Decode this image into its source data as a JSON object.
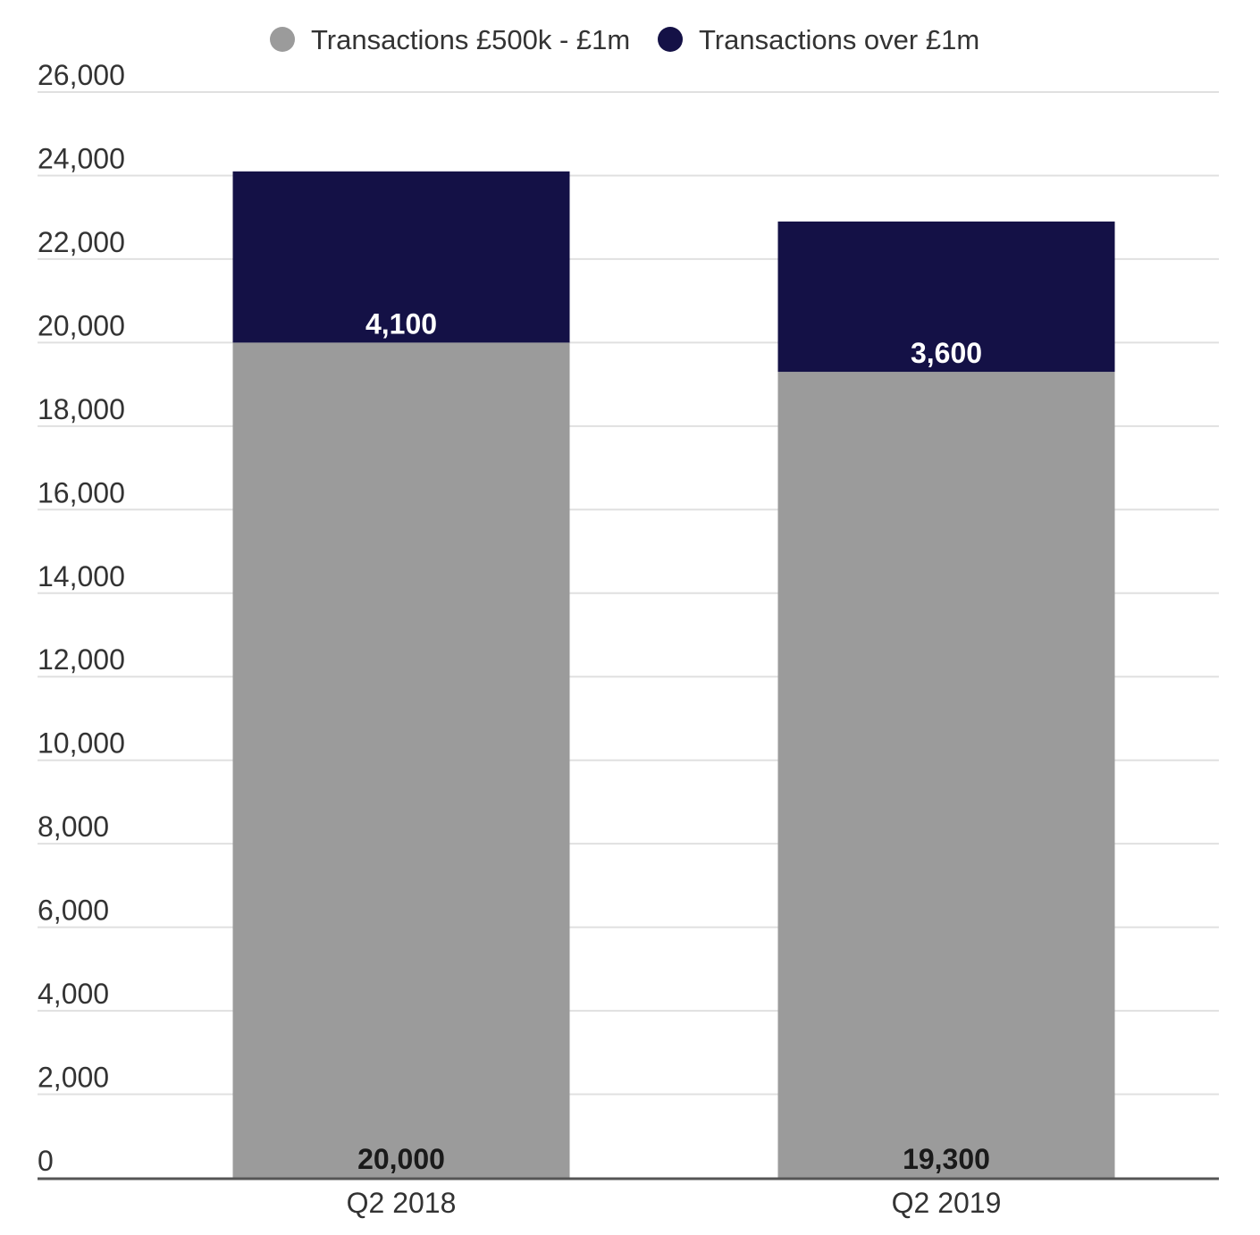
{
  "chart_data": {
    "type": "bar",
    "stacked": true,
    "categories": [
      "Q2 2018",
      "Q2 2019"
    ],
    "series": [
      {
        "name": "Transactions £500k - £1m",
        "values": [
          20000,
          19300
        ],
        "color": "#9b9b9b",
        "label_color": "#1a1a1a",
        "labels": [
          "20,000",
          "19,300"
        ]
      },
      {
        "name": "Transactions over £1m",
        "values": [
          4100,
          3600
        ],
        "color": "#141146",
        "label_color": "#ffffff",
        "labels": [
          "4,100",
          "3,600"
        ]
      }
    ],
    "ylim": [
      0,
      26000
    ],
    "yticks": [
      0,
      2000,
      4000,
      6000,
      8000,
      10000,
      12000,
      14000,
      16000,
      18000,
      20000,
      22000,
      24000,
      26000
    ],
    "ytick_labels": [
      "0",
      "2,000",
      "4,000",
      "6,000",
      "8,000",
      "10,000",
      "12,000",
      "14,000",
      "16,000",
      "18,000",
      "20,000",
      "22,000",
      "24,000",
      "26,000"
    ],
    "grid": true,
    "legend_position": "top-center",
    "gridline_color": "#e0e0e0",
    "axis_color": "#555555"
  }
}
